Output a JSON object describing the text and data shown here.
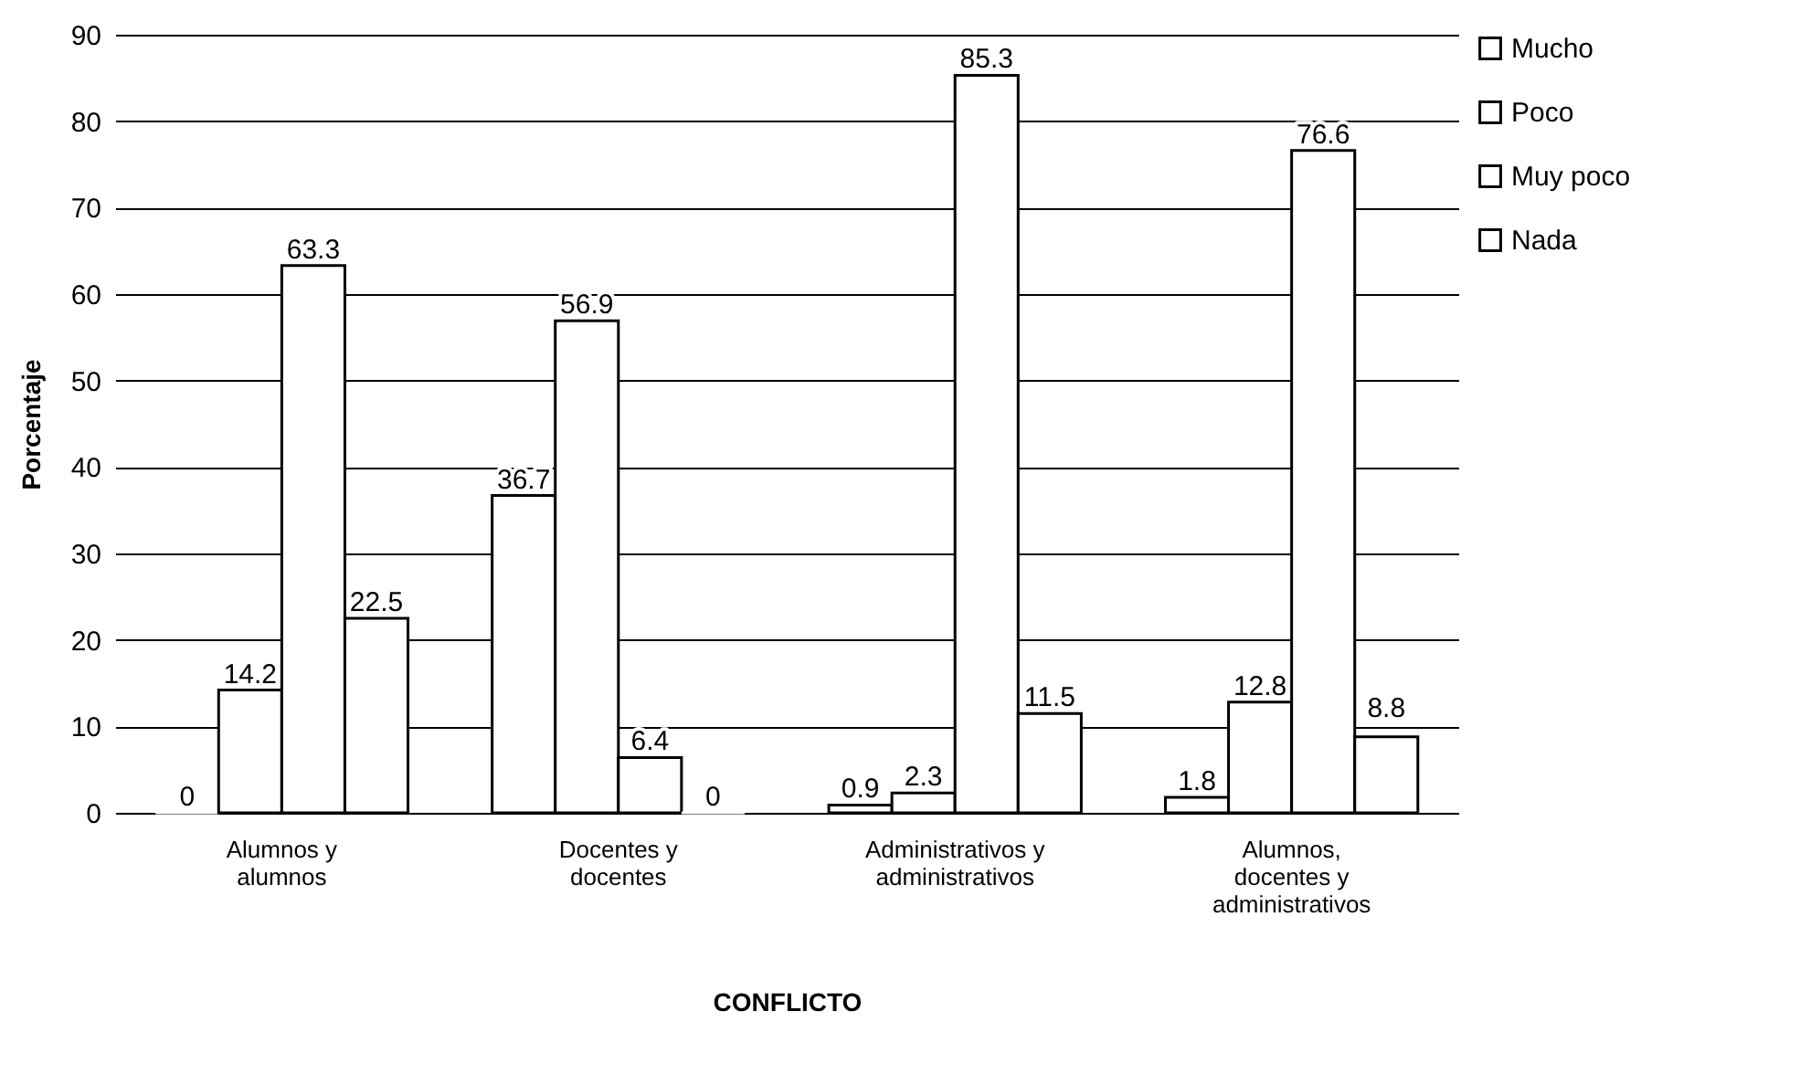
{
  "chart_data": {
    "type": "bar",
    "xlabel": "CONFLICTO",
    "ylabel": "Porcentaje",
    "categories": [
      "Alumnos y\nalumnos",
      "Docentes y\ndocentes",
      "Administrativos y\nadministrativos",
      "Alumnos,\ndocentes y\nadministrativos"
    ],
    "series": [
      {
        "name": "Mucho",
        "color": "#ffffff",
        "values": [
          0,
          36.7,
          0.9,
          1.8
        ]
      },
      {
        "name": "Poco",
        "color": "#ffffff",
        "values": [
          14.2,
          56.9,
          2.3,
          12.8
        ]
      },
      {
        "name": "Muy poco",
        "color": "#ffffff",
        "values": [
          63.3,
          6.4,
          85.3,
          76.6
        ]
      },
      {
        "name": "Nada",
        "color": "#ffffff",
        "values": [
          22.5,
          0,
          11.5,
          8.8
        ]
      }
    ],
    "ylim": [
      0,
      90
    ],
    "yticks": [
      0,
      10,
      20,
      30,
      40,
      50,
      60,
      70,
      80,
      90
    ],
    "grid": "y",
    "legend": "right",
    "data_labels": true
  }
}
